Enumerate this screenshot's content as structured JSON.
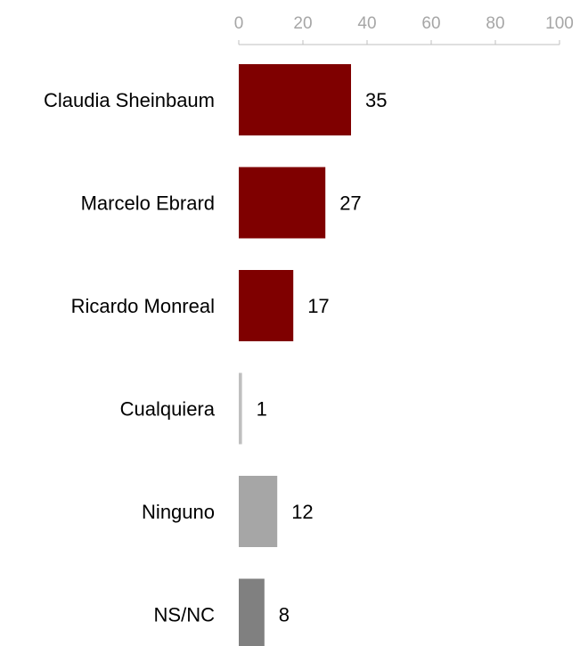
{
  "chart_data": {
    "type": "bar",
    "orientation": "horizontal",
    "categories": [
      "Claudia Sheinbaum",
      "Marcelo Ebrard",
      "Ricardo Monreal",
      "Cualquiera",
      "Ninguno",
      "NS/NC"
    ],
    "values": [
      35,
      27,
      17,
      1,
      12,
      8
    ],
    "colors": [
      "#7f0000",
      "#7f0000",
      "#7f0000",
      "#bfbfbf",
      "#a6a6a6",
      "#808080"
    ],
    "xlim": [
      0,
      100
    ],
    "xticks": [
      0,
      20,
      40,
      60,
      80,
      100
    ],
    "axis_position": "top",
    "grid": false,
    "legend": "none",
    "title": "",
    "xlabel": "",
    "ylabel": ""
  }
}
